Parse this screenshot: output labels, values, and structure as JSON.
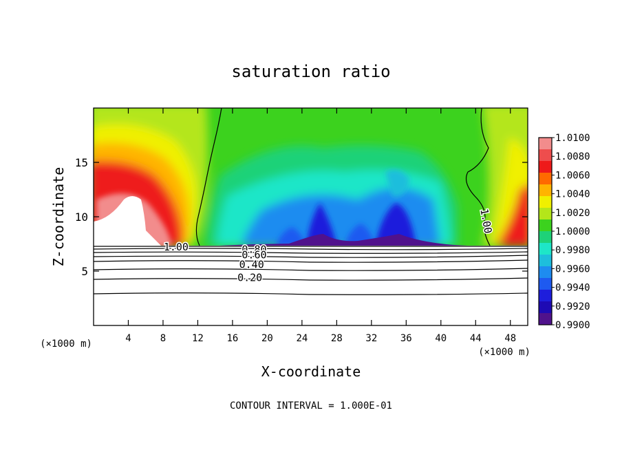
{
  "chart_data": {
    "type": "heatmap",
    "title": "saturation ratio",
    "xlabel": "X-coordinate",
    "ylabel": "Z-coordinate",
    "x_unit_left": "(×1000 m)",
    "x_unit_right": "(×1000 m)",
    "xlim": [
      0,
      50
    ],
    "ylim": [
      0,
      20
    ],
    "x_ticks": [
      4,
      8,
      12,
      16,
      20,
      24,
      28,
      32,
      36,
      40,
      44,
      48
    ],
    "y_ticks": [
      5,
      10,
      15
    ],
    "footer": "CONTOUR INTERVAL = 1.000E-01",
    "colorbar": {
      "labels": [
        "1.0100",
        "1.0080",
        "1.0060",
        "1.0040",
        "1.0020",
        "1.0000",
        "0.9980",
        "0.9960",
        "0.9940",
        "0.9920",
        "0.9900"
      ],
      "colors": [
        "#f28c8c",
        "#ee4d4d",
        "#ee1a1a",
        "#ff6a00",
        "#ffb400",
        "#f0f000",
        "#b4e61a",
        "#3cd21e",
        "#1ed278",
        "#1ee6c8",
        "#1ebedc",
        "#1e8cf0",
        "#1e5af0",
        "#1e1edc",
        "#1e0ab4",
        "#50128c"
      ]
    },
    "contours": [
      {
        "label": "1.00",
        "x": 9.5,
        "y": 7.2
      },
      {
        "label": "0.80",
        "x": 18.5,
        "y": 7.0
      },
      {
        "label": "0.60",
        "x": 18.5,
        "y": 6.5
      },
      {
        "label": "0.40",
        "x": 18.2,
        "y": 5.6
      },
      {
        "label": "0.20",
        "x": 18.0,
        "y": 4.4
      },
      {
        "label": "1.00",
        "x": 45.2,
        "y": 9.6
      }
    ]
  }
}
